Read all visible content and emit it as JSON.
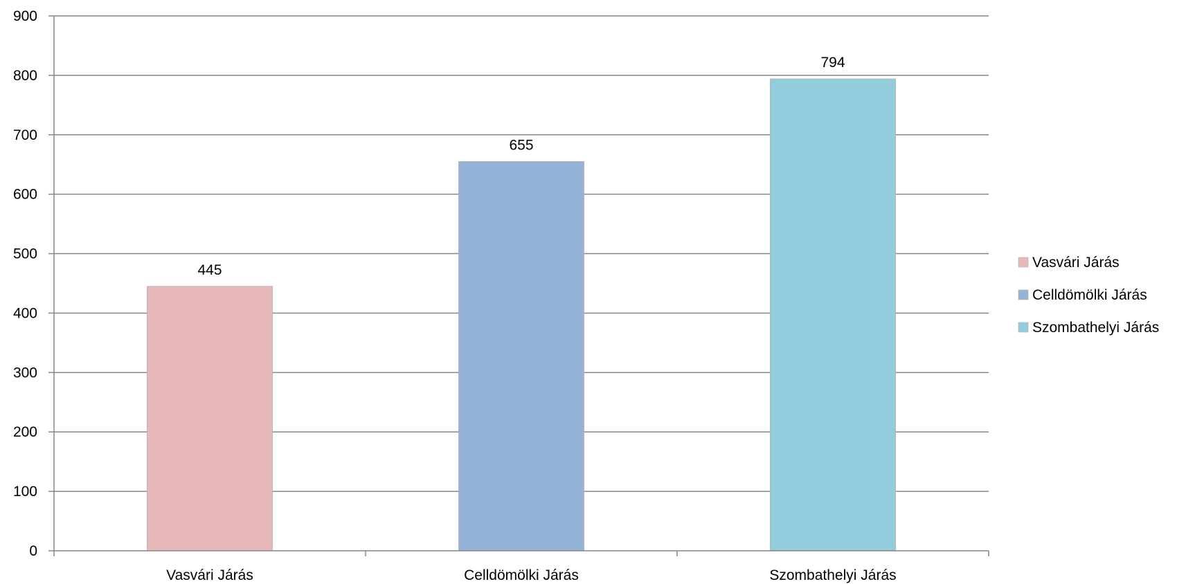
{
  "chart_data": {
    "type": "bar",
    "title": "",
    "xlabel": "",
    "ylabel": "",
    "categories": [
      "Vasvári Járás",
      "Celldömölki Járás",
      "Szombathelyi Járás"
    ],
    "values": [
      445,
      655,
      794
    ],
    "data_labels": [
      "445",
      "655",
      "794"
    ],
    "colors": [
      "#E6B9B8",
      "#95B3D7",
      "#93CDDD"
    ],
    "ylim": [
      0,
      900
    ],
    "yticks": [
      0,
      100,
      200,
      300,
      400,
      500,
      600,
      700,
      800,
      900
    ],
    "ytick_labels": [
      "0",
      "100",
      "200",
      "300",
      "400",
      "500",
      "600",
      "700",
      "800",
      "900"
    ],
    "grid": true,
    "legend": {
      "placement": "right",
      "entries": [
        "Vasvári Járás",
        "Celldömölki Járás",
        "Szombathelyi Járás"
      ]
    }
  }
}
